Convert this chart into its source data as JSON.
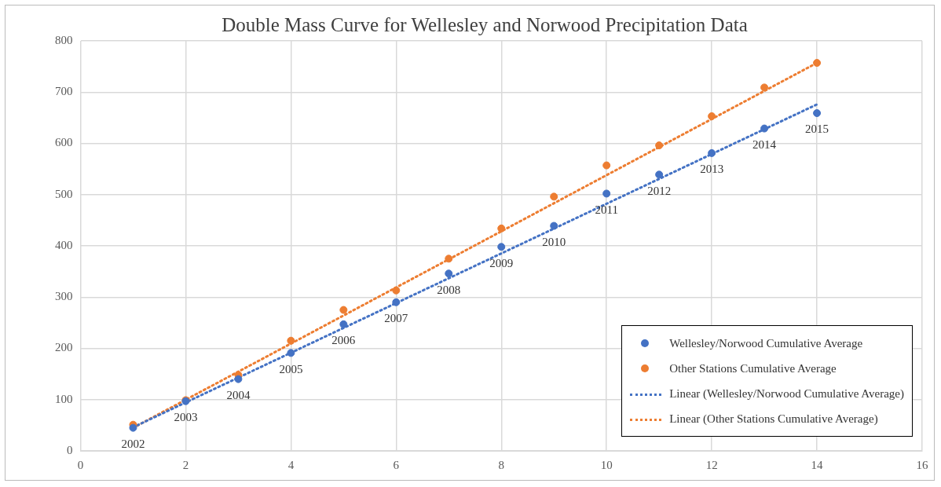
{
  "chart_data": {
    "type": "scatter",
    "title": "Double Mass Curve for Wellesley and Norwood Precipitation Data",
    "xlim": [
      0,
      16
    ],
    "xticks": [
      0,
      2,
      4,
      6,
      8,
      10,
      12,
      14,
      16
    ],
    "ylim": [
      0,
      800
    ],
    "yticks": [
      0,
      100,
      200,
      300,
      400,
      500,
      600,
      700,
      800
    ],
    "grid": true,
    "legend": "bottom right",
    "marker": "circle",
    "annotations": [
      {
        "text": "2002",
        "x": 1,
        "y": 45
      },
      {
        "text": "2003",
        "x": 2,
        "y": 97
      },
      {
        "text": "2004",
        "x": 3,
        "y": 140
      },
      {
        "text": "2005",
        "x": 4,
        "y": 191
      },
      {
        "text": "2006",
        "x": 5,
        "y": 247
      },
      {
        "text": "2007",
        "x": 6,
        "y": 290
      },
      {
        "text": "2008",
        "x": 7,
        "y": 346
      },
      {
        "text": "2009",
        "x": 8,
        "y": 398
      },
      {
        "text": "2010",
        "x": 9,
        "y": 439
      },
      {
        "text": "2011",
        "x": 10,
        "y": 502
      },
      {
        "text": "2012",
        "x": 11,
        "y": 539
      },
      {
        "text": "2013",
        "x": 12,
        "y": 581
      },
      {
        "text": "2014",
        "x": 13,
        "y": 629
      },
      {
        "text": "2015",
        "x": 14,
        "y": 659
      }
    ],
    "series": [
      {
        "name": "Wellesley/Norwood Cumulative Average",
        "color": "#4472c4",
        "x": [
          1,
          2,
          3,
          4,
          5,
          6,
          7,
          8,
          9,
          10,
          11,
          12,
          13,
          14
        ],
        "values": [
          45,
          97,
          140,
          191,
          247,
          290,
          346,
          398,
          439,
          502,
          539,
          581,
          629,
          659
        ]
      },
      {
        "name": "Other Stations Cumulative Average",
        "color": "#ed7d31",
        "x": [
          1,
          2,
          3,
          4,
          5,
          6,
          7,
          8,
          9,
          10,
          11,
          12,
          13,
          14
        ],
        "values": [
          51,
          99,
          148,
          215,
          275,
          313,
          375,
          434,
          496,
          557,
          596,
          653,
          709,
          757
        ]
      },
      {
        "name": "Linear (Wellesley/Norwood Cumulative Average)",
        "type": "line",
        "color": "#4472c4",
        "line_style": "dotted",
        "marker": "none",
        "x": [
          1,
          14
        ],
        "values": [
          46,
          676
        ]
      },
      {
        "name": "Linear (Other Stations Cumulative Average)",
        "type": "line",
        "color": "#ed7d31",
        "line_style": "dotted",
        "marker": "none",
        "x": [
          1,
          14
        ],
        "values": [
          45,
          757
        ]
      }
    ]
  }
}
